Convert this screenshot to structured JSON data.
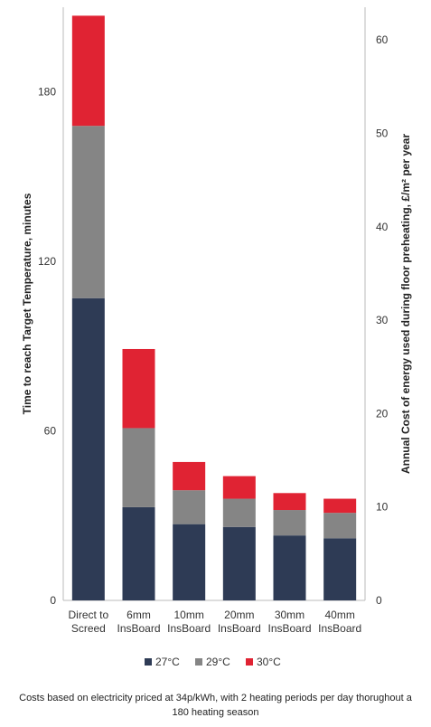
{
  "chart_data": {
    "type": "bar",
    "stacked": true,
    "categories": [
      [
        "Direct to",
        "Screed"
      ],
      [
        "6mm",
        "InsBoard"
      ],
      [
        "10mm",
        "InsBoard"
      ],
      [
        "20mm",
        "InsBoard"
      ],
      [
        "30mm",
        "InsBoard"
      ],
      [
        "40mm",
        "InsBoard"
      ]
    ],
    "series": [
      {
        "name": "27°C",
        "color": "#2e3b55",
        "values": [
          107,
          33,
          27,
          26,
          23,
          22
        ]
      },
      {
        "name": "29°C",
        "color": "#858585",
        "values": [
          61,
          28,
          12,
          10,
          9,
          9
        ]
      },
      {
        "name": "30°C",
        "color": "#e02333",
        "values": [
          39,
          28,
          10,
          8,
          6,
          5
        ]
      }
    ],
    "ylabel": "Time to reach Target Temperature,  minutes",
    "y2label": "Annual Cost of energy used during floor preheating, £/m² per year",
    "ylim": [
      0,
      210
    ],
    "yticks": [
      0,
      60,
      120,
      180
    ],
    "y2lim": [
      0,
      63.5
    ],
    "y2ticks": [
      0,
      10,
      20,
      30,
      40,
      50,
      60
    ],
    "grid": false,
    "legend_position": "bottom"
  },
  "caption": "Costs based on electricity priced at 34p/kWh, with 2 heating periods per day thorughout a 180 heating season"
}
